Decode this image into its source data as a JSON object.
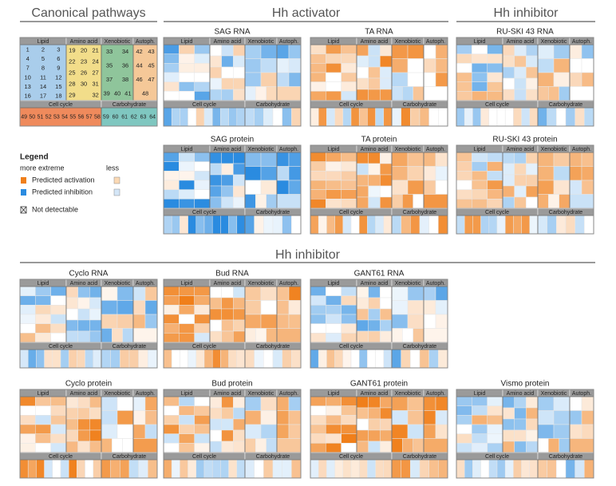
{
  "sections": [
    {
      "title": "Canonical pathways"
    },
    {
      "title": "Hh activator"
    },
    {
      "title": "Hh inhibitor"
    },
    {
      "title": "Hh inhibitor"
    }
  ],
  "key": {
    "top": [
      {
        "name": "Lipid",
        "rows": [
          [
            1,
            2,
            3
          ],
          [
            4,
            5,
            6
          ],
          [
            7,
            8,
            9
          ],
          [
            10,
            11,
            12
          ],
          [
            13,
            14,
            15
          ],
          [
            16,
            17,
            18
          ]
        ]
      },
      {
        "name": "Amino acid",
        "rows": [
          [
            19,
            20,
            21
          ],
          [
            22,
            23,
            24
          ],
          [
            25,
            26,
            27
          ],
          [
            28,
            30,
            31
          ],
          [
            29,
            null,
            32
          ]
        ]
      },
      {
        "name": "Xenobiotic",
        "rows": [
          [
            33,
            34
          ],
          [
            35,
            36
          ],
          [
            37,
            38
          ],
          [
            39,
            40,
            41
          ]
        ]
      },
      {
        "name": "Autoph.",
        "rows": [
          [
            42,
            43
          ],
          [
            44,
            45
          ],
          [
            46,
            47
          ],
          [
            48
          ]
        ]
      }
    ],
    "bottom": [
      {
        "name": "Cell cycle",
        "cells": [
          49,
          50,
          51,
          52,
          53,
          54,
          55,
          56,
          57,
          58
        ]
      },
      {
        "name": "Carbohydrate",
        "cells": [
          59,
          60,
          61,
          62,
          63,
          64
        ]
      }
    ]
  },
  "legend": {
    "title": "Legend",
    "more": "more extreme",
    "less": "less",
    "items": [
      "Predicted activation",
      "Predicted inhibition",
      "Not detectable"
    ]
  },
  "panels": [
    {
      "title": "SAG RNA"
    },
    {
      "title": "TA RNA"
    },
    {
      "title": "RU-SKI 43 RNA"
    },
    {
      "title": "SAG protein"
    },
    {
      "title": "TA protein"
    },
    {
      "title": "RU-SKI 43 protein"
    },
    {
      "title": "Cyclo RNA"
    },
    {
      "title": "Bud RNA"
    },
    {
      "title": "GANT61 RNA"
    },
    {
      "title": "Cyclo protein"
    },
    {
      "title": "Bud protein"
    },
    {
      "title": "GANT61 protein"
    },
    {
      "title": "Vismo protein"
    }
  ]
}
